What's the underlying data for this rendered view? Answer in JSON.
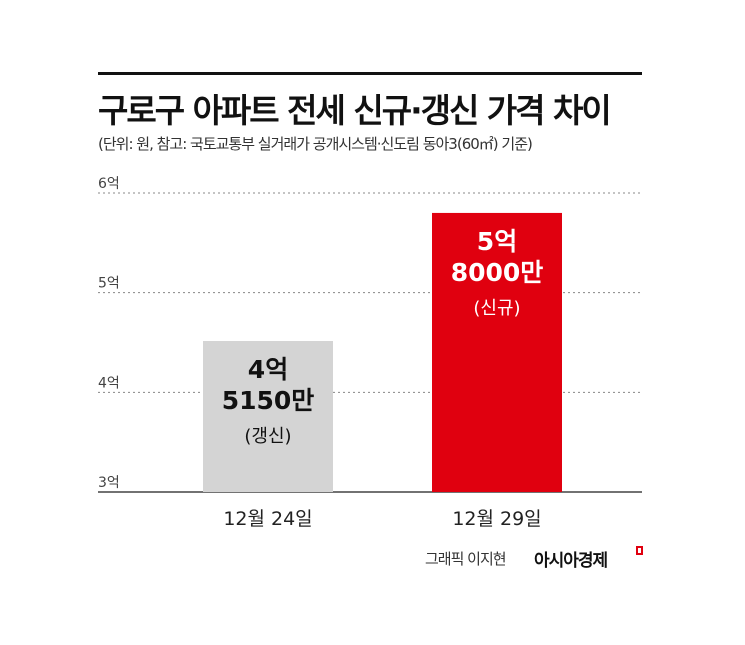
{
  "title": "구로구 아파트 전세 신규·갱신 가격 차이",
  "subtitle": "(단위: 원, 참고: 국토교통부 실거래가 공개시스템·신도림 동아3(60㎡) 기준)",
  "credit": "그래픽 이지현",
  "brand": "아시아경제",
  "chart_data": {
    "type": "bar",
    "categories": [
      "12월 24일",
      "12월 29일"
    ],
    "values": [
      4.515,
      5.8
    ],
    "ylim": [
      3,
      6
    ],
    "yticks": [
      {
        "value": 3,
        "label": "3억"
      },
      {
        "value": 4,
        "label": "4억"
      },
      {
        "value": 5,
        "label": "5억"
      },
      {
        "value": 6,
        "label": "6억"
      }
    ],
    "bar_labels": [
      {
        "lines": [
          "4억",
          "5150만",
          "(갱신)"
        ]
      },
      {
        "lines": [
          "5억",
          "8000만",
          "(신규)"
        ]
      }
    ],
    "bar_colors": [
      "#d4d4d4",
      "#e0000f"
    ],
    "bar_text_colors": [
      "#111111",
      "#ffffff"
    ],
    "grid": true
  }
}
